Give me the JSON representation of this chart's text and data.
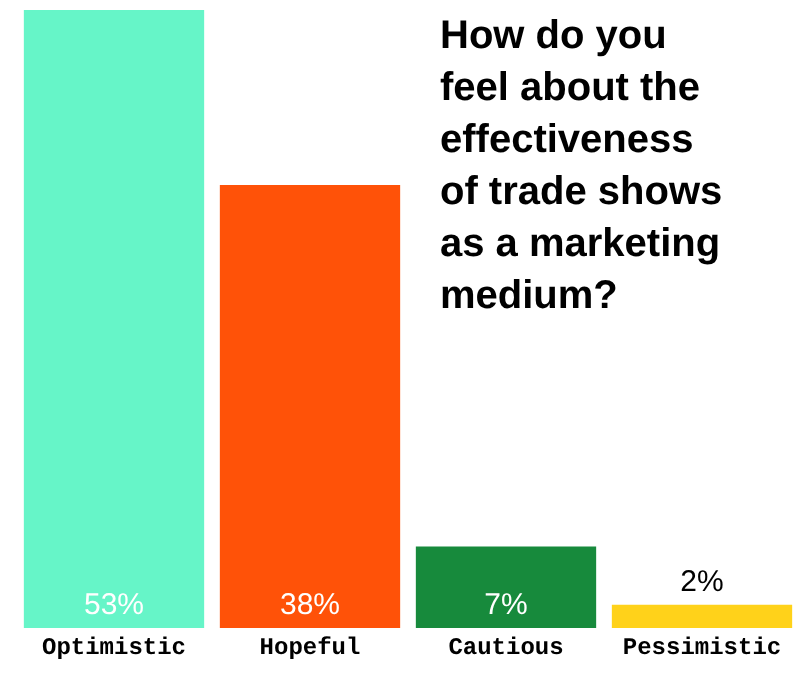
{
  "chart_data": {
    "type": "bar",
    "title": "How do you feel about the effectiveness of trade shows as a marketing medium?",
    "categories": [
      "Optimistic",
      "Hopeful",
      "Cautious",
      "Pessimistic"
    ],
    "values": [
      53,
      38,
      7,
      2
    ],
    "colors": [
      "#66f5c8",
      "#ff5208",
      "#178a3c",
      "#ffd21a"
    ],
    "value_labels": [
      "53%",
      "38%",
      "7%",
      "2%"
    ],
    "legend": false
  }
}
